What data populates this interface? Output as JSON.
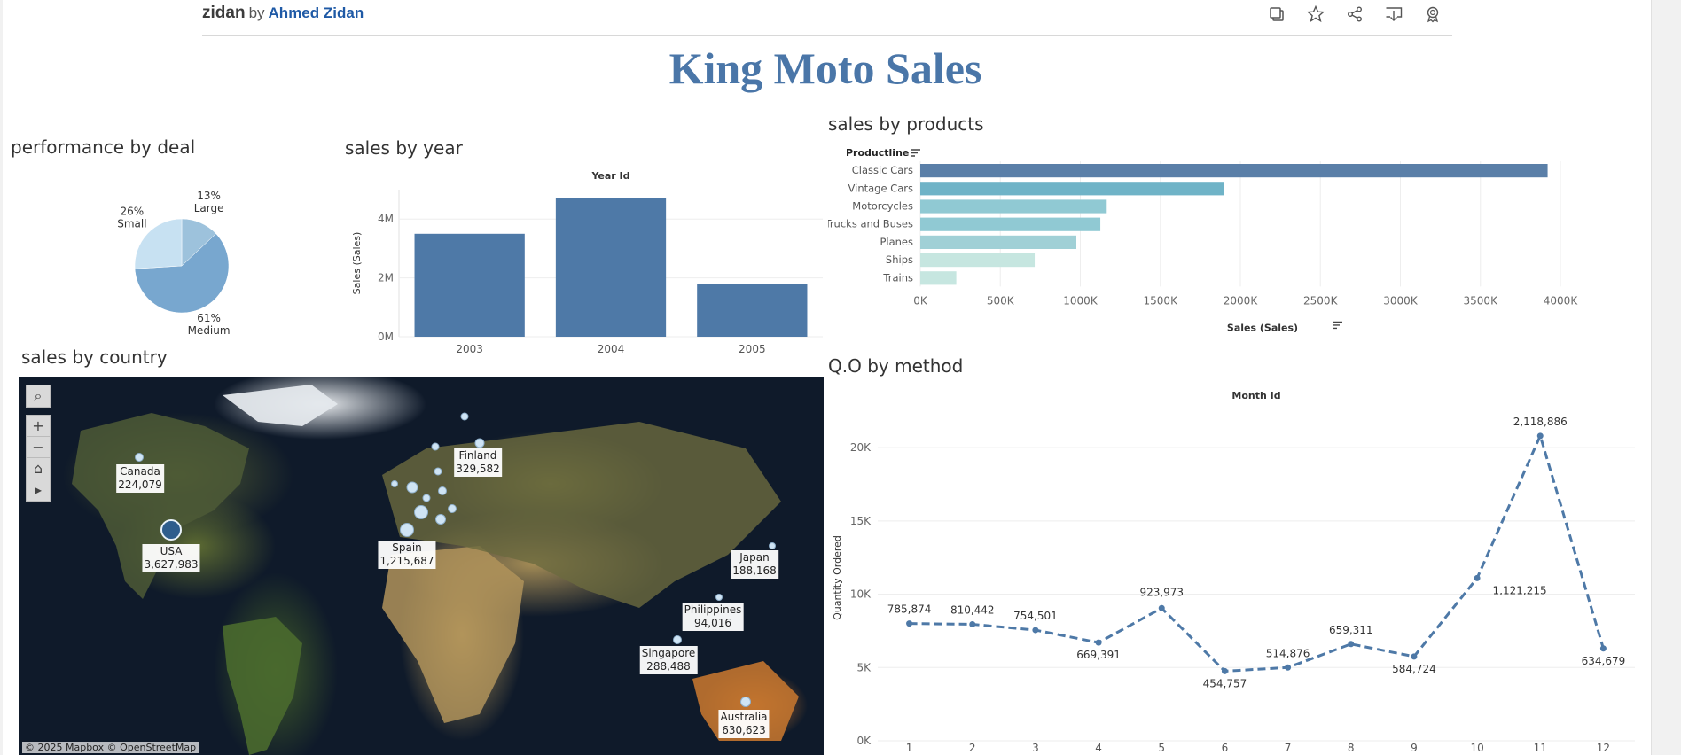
{
  "header": {
    "workbook": "zidan",
    "by": "by",
    "author": "Ahmed Zidan",
    "toolbar_icons": [
      "copy-icon",
      "star-icon",
      "share-icon",
      "download-icon",
      "badge-icon"
    ]
  },
  "dashboard_title": "King Moto Sales",
  "deal": {
    "title": "performance by deal",
    "chart_data": {
      "type": "pie",
      "slices": [
        {
          "label": "Large",
          "value": 13,
          "display": "13%",
          "color": "#9dc2dc"
        },
        {
          "label": "Medium",
          "value": 61,
          "display": "61%",
          "color": "#78a7cf"
        },
        {
          "label": "Small",
          "value": 26,
          "display": "26%",
          "color": "#c7e1f2"
        }
      ]
    }
  },
  "year": {
    "title": "sales by year",
    "chart_data": {
      "type": "bar",
      "header": "Year Id",
      "categories": [
        "2003",
        "2004",
        "2005"
      ],
      "values": [
        3.5,
        4.7,
        1.8
      ],
      "ylabel": "Sales (Sales)",
      "yticks": [
        "0M",
        "2M",
        "4M"
      ],
      "ytick_values": [
        0,
        2,
        4
      ],
      "ylim": [
        0,
        5
      ],
      "color": "#4e79a7"
    }
  },
  "products": {
    "title": "sales by products",
    "chart_data": {
      "type": "bar",
      "orientation": "horizontal",
      "header": "Productline",
      "categories": [
        "Classic Cars",
        "Vintage Cars",
        "Motorcycles",
        "Trucks and Buses",
        "Planes",
        "Ships",
        "Trains"
      ],
      "values": [
        3920,
        1900,
        1165,
        1125,
        975,
        715,
        225
      ],
      "colors": [
        "#5a7fa8",
        "#6fb3c7",
        "#90c9d3",
        "#90c9d3",
        "#a0d0d6",
        "#c6e6e0",
        "#c6e6e0"
      ],
      "xlabel": "Sales (Sales)",
      "xticks": [
        "0K",
        "500K",
        "1000K",
        "1500K",
        "2000K",
        "2500K",
        "3000K",
        "3500K",
        "4000K"
      ],
      "xtick_values": [
        0,
        500,
        1000,
        1500,
        2000,
        2500,
        3000,
        3500,
        4000
      ],
      "xlim": [
        0,
        4000
      ]
    }
  },
  "country": {
    "title": "sales by country",
    "attribution": "© 2025 Mapbox  © OpenStreetMap",
    "labels": [
      {
        "name": "Canada",
        "value": "224,079"
      },
      {
        "name": "USA",
        "value": "3,627,983"
      },
      {
        "name": "Finland",
        "value": "329,582"
      },
      {
        "name": "Spain",
        "value": "1,215,687"
      },
      {
        "name": "Japan",
        "value": "188,168"
      },
      {
        "name": "Philippines",
        "value": "94,016"
      },
      {
        "name": "Singapore",
        "value": "288,488"
      },
      {
        "name": "Australia",
        "value": "630,623"
      }
    ],
    "controls": [
      "search-icon",
      "zoom-in-icon",
      "zoom-out-icon",
      "home-icon",
      "play-icon"
    ]
  },
  "qo": {
    "title": "Q.O by method",
    "chart_data": {
      "type": "line",
      "header": "Month Id",
      "x": [
        1,
        2,
        3,
        4,
        5,
        6,
        7,
        8,
        9,
        10,
        11,
        12
      ],
      "values": [
        8000,
        7950,
        7550,
        6700,
        9050,
        4750,
        5000,
        6600,
        5750,
        11100,
        20800,
        6300
      ],
      "point_labels": [
        "785,874",
        "810,442",
        "754,501",
        "669,391",
        "923,973",
        "454,757",
        "514,876",
        "659,311",
        "584,724",
        "1,121,215",
        "2,118,886",
        "634,679"
      ],
      "ylabel": "Quantity Ordered",
      "yticks": [
        "0K",
        "5K",
        "10K",
        "15K",
        "20K"
      ],
      "ytick_values": [
        0,
        5000,
        10000,
        15000,
        20000
      ],
      "ylim": [
        0,
        22000
      ],
      "color": "#4e79a7"
    }
  }
}
